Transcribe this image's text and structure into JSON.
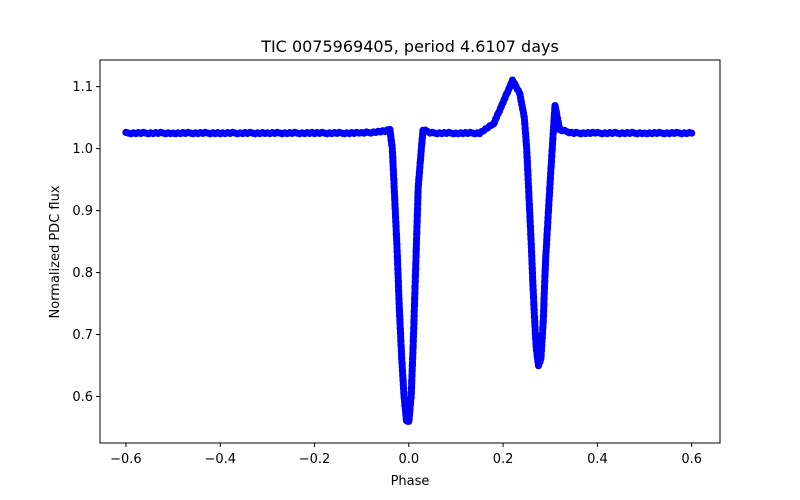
{
  "chart_data": {
    "type": "scatter",
    "title": "TIC 0075969405, period 4.6107 days",
    "xlabel": "Phase",
    "ylabel": "Normalized PDC flux",
    "xlim": [
      -0.655,
      0.66
    ],
    "ylim": [
      0.525,
      1.143
    ],
    "xticks": [
      -0.6,
      -0.4,
      -0.2,
      0.0,
      0.2,
      0.4,
      0.6
    ],
    "xtick_labels": [
      "−0.6",
      "−0.4",
      "−0.2",
      "0.0",
      "0.2",
      "0.4",
      "0.6"
    ],
    "yticks": [
      0.6,
      0.7,
      0.8,
      0.9,
      1.0,
      1.1
    ],
    "ytick_labels": [
      "0.6",
      "0.7",
      "0.8",
      "0.9",
      "1.0",
      "1.1"
    ],
    "grid": false,
    "marker_color": "#0000ff",
    "series": [
      {
        "x": [
          -0.6,
          -0.5,
          -0.4,
          -0.3,
          -0.2,
          -0.1,
          -0.05,
          -0.04,
          -0.035,
          -0.03,
          -0.025,
          -0.02,
          -0.015,
          -0.01,
          -0.005,
          0.0,
          0.005,
          0.01,
          0.015,
          0.02,
          0.03,
          0.05,
          0.1,
          0.15,
          0.18,
          0.2,
          0.22,
          0.235,
          0.245,
          0.25,
          0.255,
          0.26,
          0.265,
          0.27,
          0.275,
          0.28,
          0.285,
          0.29,
          0.3,
          0.31,
          0.32,
          0.35,
          0.4,
          0.5,
          0.6
        ],
        "y": [
          1.025,
          1.025,
          1.025,
          1.025,
          1.025,
          1.025,
          1.028,
          1.03,
          1.0,
          0.92,
          0.84,
          0.74,
          0.66,
          0.6,
          0.56,
          0.56,
          0.6,
          0.7,
          0.82,
          0.94,
          1.03,
          1.025,
          1.025,
          1.025,
          1.04,
          1.075,
          1.11,
          1.09,
          1.05,
          1.0,
          0.92,
          0.84,
          0.75,
          0.68,
          0.65,
          0.66,
          0.72,
          0.82,
          0.95,
          1.07,
          1.03,
          1.025,
          1.025,
          1.025,
          1.025
        ]
      }
    ]
  }
}
